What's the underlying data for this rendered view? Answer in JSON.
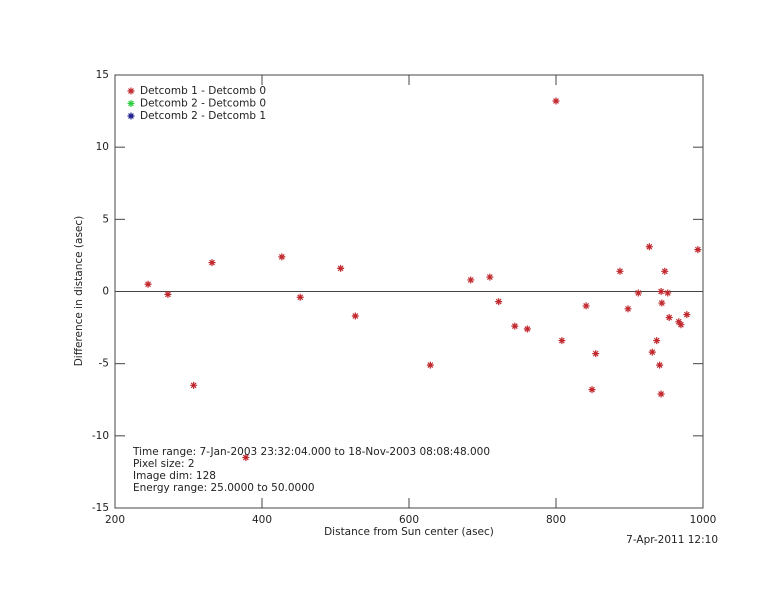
{
  "chart_data": {
    "type": "scatter",
    "xlabel": "Distance from Sun center (asec)",
    "ylabel": "Difference in distance (asec)",
    "xlim": [
      200,
      1000
    ],
    "ylim": [
      -15,
      15
    ],
    "xticks": [
      200,
      400,
      600,
      800,
      1000
    ],
    "yticks": [
      -15,
      -10,
      -5,
      0,
      5,
      10,
      15
    ],
    "hline": 0,
    "legend": "top-left",
    "annotations": [
      "Time range:  7-Jan-2003 23:32:04.000 to 18-Nov-2003 08:08:48.000",
      "Pixel size: 2",
      "Image dim: 128",
      "Energy range: 25.0000 to 50.0000"
    ],
    "timestamp": "7-Apr-2011 12:10",
    "series": [
      {
        "name": "Detcomb 1 - Detcomb 0",
        "color": "#c0282d",
        "x": [
          245,
          272,
          307,
          332,
          378,
          427,
          452,
          507,
          527,
          629,
          684,
          710,
          722,
          744,
          761,
          800,
          808,
          841,
          849,
          854,
          887,
          898,
          912,
          927,
          931,
          937,
          941,
          943,
          943,
          944,
          948,
          952,
          954,
          967,
          970,
          978,
          993
        ],
        "values": [
          0.5,
          -0.2,
          -6.5,
          2.0,
          -11.5,
          2.4,
          -0.4,
          1.6,
          -1.7,
          -5.1,
          0.8,
          1.0,
          -0.7,
          -2.4,
          -2.6,
          13.2,
          -3.4,
          -1.0,
          -6.8,
          -4.3,
          1.4,
          -1.2,
          -0.1,
          3.1,
          -4.2,
          -3.4,
          -5.1,
          -7.1,
          0.0,
          -0.8,
          1.4,
          -0.1,
          -1.8,
          -2.1,
          -2.3,
          -1.6,
          2.9
        ]
      },
      {
        "name": "Detcomb 2 - Detcomb 0",
        "color": "#2ecc40",
        "x": [],
        "values": []
      },
      {
        "name": "Detcomb 2 - Detcomb 1",
        "color": "#1a1a8c",
        "x": [],
        "values": []
      }
    ]
  }
}
